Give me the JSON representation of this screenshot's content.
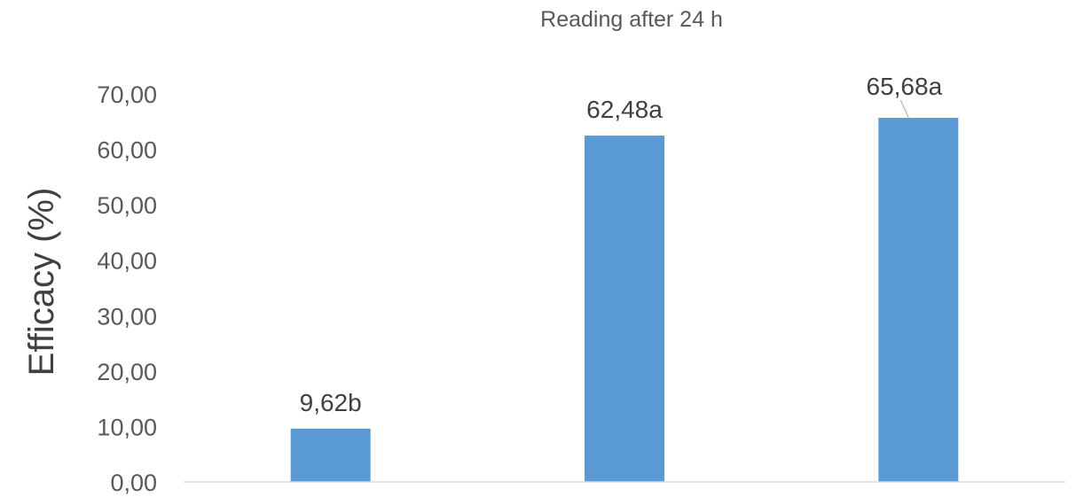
{
  "chart_data": {
    "type": "bar",
    "title": "Reading after 24 h",
    "xlabel": "",
    "ylabel": "Efficacy (%)",
    "ylim": [
      0,
      70
    ],
    "ytick_step": 10,
    "yticks": [
      "0,00",
      "10,00",
      "20,00",
      "30,00",
      "40,00",
      "50,00",
      "60,00",
      "70,00"
    ],
    "categories": [
      "",
      "",
      ""
    ],
    "values": [
      9.62,
      62.48,
      65.68
    ],
    "data_labels": [
      "9,62b",
      "62,48a",
      "65,68a"
    ],
    "bar_color": "#5b9bd5",
    "axis_color": "#d9d9d9",
    "leader_line_color": "#a6a6a6",
    "grid": false,
    "legend": "none"
  }
}
